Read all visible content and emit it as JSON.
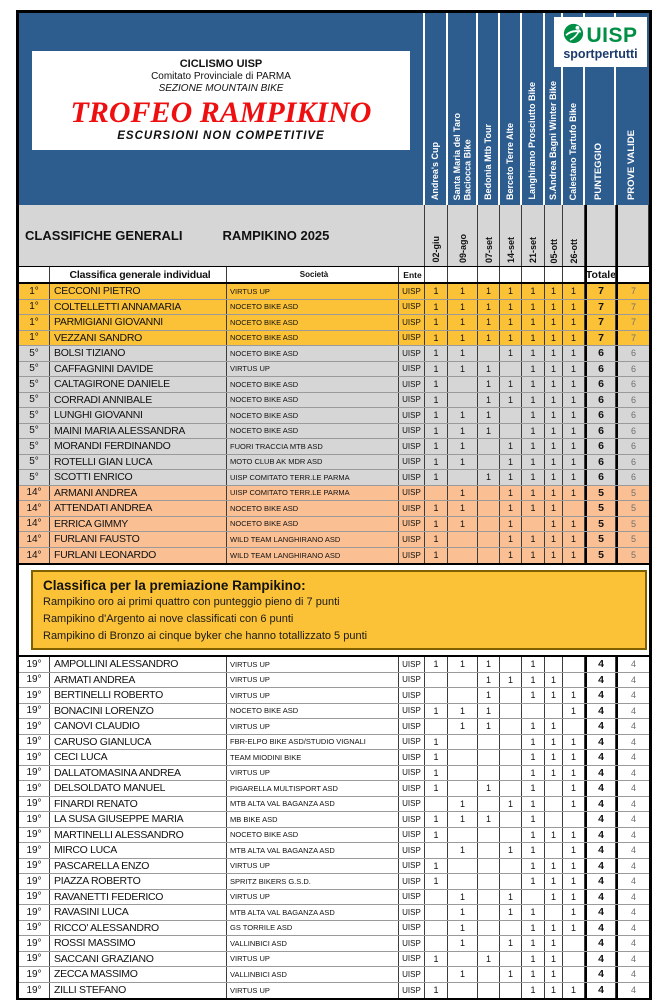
{
  "header": {
    "org_line1": "CICLISMO UISP",
    "org_line2": "Comitato Provinciale di PARMA",
    "org_line3": "SEZIONE MOUNTAIN BIKE",
    "trophy_title": "TROFEO RAMPIKINO",
    "subtitle": "ESCURSIONI  NON COMPETITIVE",
    "logo": {
      "name": "UISP",
      "tagline": "sportpertutti"
    }
  },
  "section_title": {
    "left": "CLASSIFICHE GENERALI",
    "right": "RAMPIKINO 2025"
  },
  "events": [
    {
      "name": "Andrea's Cup",
      "date": "02-giu"
    },
    {
      "name": "Santa Maria del Taro\nBaciocca Bike",
      "date": "09-ago"
    },
    {
      "name": "Bedonia Mtb Tour",
      "date": "07-set"
    },
    {
      "name": "Berceto Terre Alte",
      "date": "14-set"
    },
    {
      "name": "Langhirano Prosciutto Bike",
      "date": "21-set"
    },
    {
      "name": "S.Andrea Bagni Winter Bike",
      "date": "05-ott"
    },
    {
      "name": "Calestano  Tartufo Bike",
      "date": "26-ott"
    }
  ],
  "score_columns": [
    "PUNTEGGIO",
    "PROVE VALIDE"
  ],
  "table_header": {
    "classifica": "Classifica generale individual",
    "societa": "Società",
    "ente": "Ente",
    "totale": "Totale"
  },
  "banner": {
    "title": "Classifica per la premiazione Rampikino:",
    "lines": [
      "Rampikino oro ai primi quattro con punteggio pieno di 7 punti",
      "Rampikino d'Argento ai nove classificati con 6 punti",
      "Rampikino di Bronzo ai cinque byker che hanno totallizzato 5 punti"
    ]
  },
  "colors": {
    "header_blue": "#2d5c8e",
    "gold_row": "#fcc237",
    "gray_row": "#d6d6d6",
    "orange_row": "#fac094",
    "banner_gold": "#fcc237",
    "trophy_red": "#ee1010",
    "uisp_green": "#008f45",
    "uisp_navy": "#1d3a6e"
  },
  "riders_top": [
    {
      "pos": "1°",
      "name": "CECCONI PIETRO",
      "team": "VIRTUS UP",
      "ente": "UISP",
      "points": [
        "1",
        "1",
        "1",
        "1",
        "1",
        "1",
        "1"
      ],
      "total": "7",
      "valid": "7",
      "tier": "gold"
    },
    {
      "pos": "1°",
      "name": "COLTELLETTI ANNAMARIA",
      "team": "NOCETO BIKE ASD",
      "ente": "UISP",
      "points": [
        "1",
        "1",
        "1",
        "1",
        "1",
        "1",
        "1"
      ],
      "total": "7",
      "valid": "7",
      "tier": "gold"
    },
    {
      "pos": "1°",
      "name": "PARMIGIANI GIOVANNI",
      "team": "NOCETO BIKE ASD",
      "ente": "UISP",
      "points": [
        "1",
        "1",
        "1",
        "1",
        "1",
        "1",
        "1"
      ],
      "total": "7",
      "valid": "7",
      "tier": "gold"
    },
    {
      "pos": "1°",
      "name": "VEZZANI SANDRO",
      "team": "NOCETO BIKE ASD",
      "ente": "UISP",
      "points": [
        "1",
        "1",
        "1",
        "1",
        "1",
        "1",
        "1"
      ],
      "total": "7",
      "valid": "7",
      "tier": "gold"
    },
    {
      "pos": "5°",
      "name": "BOLSI TIZIANO",
      "team": "NOCETO BIKE ASD",
      "ente": "UISP",
      "points": [
        "1",
        "1",
        "",
        "1",
        "1",
        "1",
        "1"
      ],
      "total": "6",
      "valid": "6",
      "tier": "gray"
    },
    {
      "pos": "5°",
      "name": "CAFFAGNINI DAVIDE",
      "team": "VIRTUS UP",
      "ente": "UISP",
      "points": [
        "1",
        "1",
        "1",
        "",
        "1",
        "1",
        "1"
      ],
      "total": "6",
      "valid": "6",
      "tier": "gray"
    },
    {
      "pos": "5°",
      "name": "CALTAGIRONE DANIELE",
      "team": "NOCETO BIKE ASD",
      "ente": "UISP",
      "points": [
        "1",
        "",
        "1",
        "1",
        "1",
        "1",
        "1"
      ],
      "total": "6",
      "valid": "6",
      "tier": "gray"
    },
    {
      "pos": "5°",
      "name": "CORRADI ANNIBALE",
      "team": "NOCETO BIKE ASD",
      "ente": "UISP",
      "points": [
        "1",
        "",
        "1",
        "1",
        "1",
        "1",
        "1"
      ],
      "total": "6",
      "valid": "6",
      "tier": "gray"
    },
    {
      "pos": "5°",
      "name": "LUNGHI GIOVANNI",
      "team": "NOCETO BIKE ASD",
      "ente": "UISP",
      "points": [
        "1",
        "1",
        "1",
        "",
        "1",
        "1",
        "1"
      ],
      "total": "6",
      "valid": "6",
      "tier": "gray"
    },
    {
      "pos": "5°",
      "name": "MAINI MARIA ALESSANDRA",
      "team": "NOCETO BIKE ASD",
      "ente": "UISP",
      "points": [
        "1",
        "1",
        "1",
        "",
        "1",
        "1",
        "1"
      ],
      "total": "6",
      "valid": "6",
      "tier": "gray"
    },
    {
      "pos": "5°",
      "name": "MORANDI FERDINANDO",
      "team": "FUORI TRACCIA MTB ASD",
      "ente": "UISP",
      "points": [
        "1",
        "1",
        "",
        "1",
        "1",
        "1",
        "1"
      ],
      "total": "6",
      "valid": "6",
      "tier": "gray"
    },
    {
      "pos": "5°",
      "name": "ROTELLI GIAN LUCA",
      "team": "MOTO CLUB AK MDR ASD",
      "ente": "UISP",
      "points": [
        "1",
        "1",
        "",
        "1",
        "1",
        "1",
        "1"
      ],
      "total": "6",
      "valid": "6",
      "tier": "gray"
    },
    {
      "pos": "5°",
      "name": "SCOTTI ENRICO",
      "team": "UISP COMITATO TERR.LE PARMA",
      "ente": "UISP",
      "points": [
        "1",
        "",
        "1",
        "1",
        "1",
        "1",
        "1"
      ],
      "total": "6",
      "valid": "6",
      "tier": "gray"
    },
    {
      "pos": "14°",
      "name": "ARMANI ANDREA",
      "team": "UISP COMITATO TERR.LE PARMA",
      "ente": "UISP",
      "points": [
        "",
        "1",
        "",
        "1",
        "1",
        "1",
        "1"
      ],
      "total": "5",
      "valid": "5",
      "tier": "orange"
    },
    {
      "pos": "14°",
      "name": "ATTENDATI ANDREA",
      "team": "NOCETO BIKE ASD",
      "ente": "UISP",
      "points": [
        "1",
        "1",
        "",
        "1",
        "1",
        "1",
        ""
      ],
      "total": "5",
      "valid": "5",
      "tier": "orange"
    },
    {
      "pos": "14°",
      "name": "ERRICA GIMMY",
      "team": "NOCETO BIKE ASD",
      "ente": "UISP",
      "points": [
        "1",
        "1",
        "",
        "1",
        "",
        "1",
        "1"
      ],
      "total": "5",
      "valid": "5",
      "tier": "orange"
    },
    {
      "pos": "14°",
      "name": "FURLANI FAUSTO",
      "team": "WILD TEAM LANGHIRANO ASD",
      "ente": "UISP",
      "points": [
        "1",
        "",
        "",
        "1",
        "1",
        "1",
        "1"
      ],
      "total": "5",
      "valid": "5",
      "tier": "orange"
    },
    {
      "pos": "14°",
      "name": "FURLANI LEONARDO",
      "team": "WILD TEAM LANGHIRANO ASD",
      "ente": "UISP",
      "points": [
        "1",
        "",
        "",
        "1",
        "1",
        "1",
        "1"
      ],
      "total": "5",
      "valid": "5",
      "tier": "orange"
    }
  ],
  "riders_bottom": [
    {
      "pos": "19°",
      "name": "AMPOLLINI ALESSANDRO",
      "team": "VIRTUS UP",
      "ente": "UISP",
      "points": [
        "1",
        "1",
        "1",
        "",
        "1",
        "",
        ""
      ],
      "total": "4",
      "valid": "4",
      "tier": "white"
    },
    {
      "pos": "19°",
      "name": "ARMATI ANDREA",
      "team": "VIRTUS UP",
      "ente": "UISP",
      "points": [
        "",
        "",
        "1",
        "1",
        "1",
        "1",
        ""
      ],
      "total": "4",
      "valid": "4",
      "tier": "white"
    },
    {
      "pos": "19°",
      "name": "BERTINELLI ROBERTO",
      "team": "VIRTUS UP",
      "ente": "UISP",
      "points": [
        "",
        "",
        "1",
        "",
        "1",
        "1",
        "1"
      ],
      "total": "4",
      "valid": "4",
      "tier": "white"
    },
    {
      "pos": "19°",
      "name": "BONACINI LORENZO",
      "team": "NOCETO BIKE ASD",
      "ente": "UISP",
      "points": [
        "1",
        "1",
        "1",
        "",
        "",
        "",
        "1"
      ],
      "total": "4",
      "valid": "4",
      "tier": "white"
    },
    {
      "pos": "19°",
      "name": "CANOVI CLAUDIO",
      "team": "VIRTUS UP",
      "ente": "UISP",
      "points": [
        "",
        "1",
        "1",
        "",
        "1",
        "1",
        ""
      ],
      "total": "4",
      "valid": "4",
      "tier": "white"
    },
    {
      "pos": "19°",
      "name": "CARUSO GIANLUCA",
      "team": "FBR-ELPO BIKE ASD/STUDIO VIGNALI",
      "ente": "UISP",
      "points": [
        "1",
        "",
        "",
        "",
        "1",
        "1",
        "1"
      ],
      "total": "4",
      "valid": "4",
      "tier": "white"
    },
    {
      "pos": "19°",
      "name": "CECI LUCA",
      "team": "TEAM MIODINI BIKE",
      "ente": "UISP",
      "points": [
        "1",
        "",
        "",
        "",
        "1",
        "1",
        "1"
      ],
      "total": "4",
      "valid": "4",
      "tier": "white"
    },
    {
      "pos": "19°",
      "name": "DALLATOMASINA ANDREA",
      "team": "VIRTUS UP",
      "ente": "UISP",
      "points": [
        "1",
        "",
        "",
        "",
        "1",
        "1",
        "1"
      ],
      "total": "4",
      "valid": "4",
      "tier": "white"
    },
    {
      "pos": "19°",
      "name": "DELSOLDATO MANUEL",
      "team": "PIGARELLA MULTISPORT ASD",
      "ente": "UISP",
      "points": [
        "1",
        "",
        "1",
        "",
        "1",
        "",
        "1"
      ],
      "total": "4",
      "valid": "4",
      "tier": "white"
    },
    {
      "pos": "19°",
      "name": "FINARDI RENATO",
      "team": "MTB ALTA VAL BAGANZA ASD",
      "ente": "UISP",
      "points": [
        "",
        "1",
        "",
        "1",
        "1",
        "",
        "1"
      ],
      "total": "4",
      "valid": "4",
      "tier": "white"
    },
    {
      "pos": "19°",
      "name": "LA SUSA GIUSEPPE MARIA",
      "team": "MB BIKE ASD",
      "ente": "UISP",
      "points": [
        "1",
        "1",
        "1",
        "",
        "1",
        "",
        ""
      ],
      "total": "4",
      "valid": "4",
      "tier": "white"
    },
    {
      "pos": "19°",
      "name": "MARTINELLI ALESSANDRO",
      "team": "NOCETO BIKE ASD",
      "ente": "UISP",
      "points": [
        "1",
        "",
        "",
        "",
        "1",
        "1",
        "1"
      ],
      "total": "4",
      "valid": "4",
      "tier": "white"
    },
    {
      "pos": "19°",
      "name": "MIRCO LUCA",
      "team": "MTB ALTA VAL BAGANZA ASD",
      "ente": "UISP",
      "points": [
        "",
        "1",
        "",
        "1",
        "1",
        "",
        "1"
      ],
      "total": "4",
      "valid": "4",
      "tier": "white"
    },
    {
      "pos": "19°",
      "name": "PASCARELLA ENZO",
      "team": "VIRTUS UP",
      "ente": "UISP",
      "points": [
        "1",
        "",
        "",
        "",
        "1",
        "1",
        "1"
      ],
      "total": "4",
      "valid": "4",
      "tier": "white"
    },
    {
      "pos": "19°",
      "name": "PIAZZA ROBERTO",
      "team": "SPRITZ BIKERS G.S.D.",
      "ente": "UISP",
      "points": [
        "1",
        "",
        "",
        "",
        "1",
        "1",
        "1"
      ],
      "total": "4",
      "valid": "4",
      "tier": "white"
    },
    {
      "pos": "19°",
      "name": "RAVANETTI FEDERICO",
      "team": "VIRTUS UP",
      "ente": "UISP",
      "points": [
        "",
        "1",
        "",
        "1",
        "",
        "1",
        "1"
      ],
      "total": "4",
      "valid": "4",
      "tier": "white"
    },
    {
      "pos": "19°",
      "name": "RAVASINI LUCA",
      "team": "MTB ALTA VAL BAGANZA ASD",
      "ente": "UISP",
      "points": [
        "",
        "1",
        "",
        "1",
        "1",
        "",
        "1"
      ],
      "total": "4",
      "valid": "4",
      "tier": "white"
    },
    {
      "pos": "19°",
      "name": "RICCO' ALESSANDRO",
      "team": "GS TORRILE ASD",
      "ente": "UISP",
      "points": [
        "",
        "1",
        "",
        "",
        "1",
        "1",
        "1"
      ],
      "total": "4",
      "valid": "4",
      "tier": "white"
    },
    {
      "pos": "19°",
      "name": "ROSSI MASSIMO",
      "team": "VALLINBICI ASD",
      "ente": "UISP",
      "points": [
        "",
        "1",
        "",
        "1",
        "1",
        "1",
        ""
      ],
      "total": "4",
      "valid": "4",
      "tier": "white"
    },
    {
      "pos": "19°",
      "name": "SACCANI GRAZIANO",
      "team": "VIRTUS UP",
      "ente": "UISP",
      "points": [
        "1",
        "",
        "1",
        "",
        "1",
        "1",
        ""
      ],
      "total": "4",
      "valid": "4",
      "tier": "white"
    },
    {
      "pos": "19°",
      "name": "ZECCA MASSIMO",
      "team": "VALLINBICI ASD",
      "ente": "UISP",
      "points": [
        "",
        "1",
        "",
        "1",
        "1",
        "1",
        ""
      ],
      "total": "4",
      "valid": "4",
      "tier": "white"
    },
    {
      "pos": "19°",
      "name": "ZILLI STEFANO",
      "team": "VIRTUS UP",
      "ente": "UISP",
      "points": [
        "1",
        "",
        "",
        "",
        "1",
        "1",
        "1"
      ],
      "total": "4",
      "valid": "4",
      "tier": "white"
    }
  ]
}
